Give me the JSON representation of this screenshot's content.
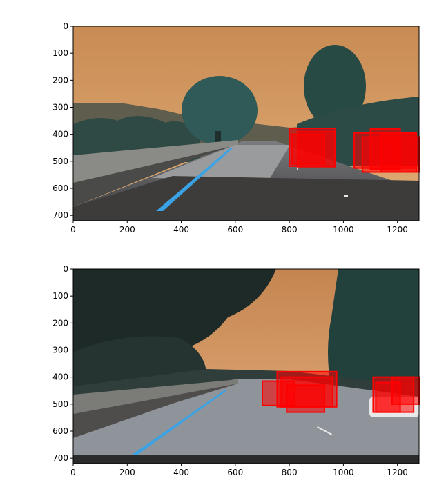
{
  "figure": {
    "panels": [
      {
        "image_description_hidden": "",
        "x_ticks": [
          "0",
          "200",
          "400",
          "600",
          "800",
          "1000",
          "1200"
        ],
        "y_ticks": [
          "0",
          "100",
          "200",
          "300",
          "400",
          "500",
          "600",
          "700"
        ],
        "x_range": [
          0,
          1280
        ],
        "y_range": [
          720,
          0
        ],
        "detections": [
          {
            "x": 800,
            "y": 378,
            "w": 170,
            "h": 140
          },
          {
            "x": 830,
            "y": 390,
            "w": 140,
            "h": 130
          },
          {
            "x": 810,
            "y": 400,
            "w": 120,
            "h": 110
          },
          {
            "x": 1040,
            "y": 395,
            "w": 230,
            "h": 130
          },
          {
            "x": 1070,
            "y": 410,
            "w": 210,
            "h": 130
          },
          {
            "x": 1100,
            "y": 380,
            "w": 110,
            "h": 150
          },
          {
            "x": 1140,
            "y": 400,
            "w": 130,
            "h": 140
          }
        ]
      },
      {
        "x_ticks": [
          "0",
          "200",
          "400",
          "600",
          "800",
          "1000",
          "1200"
        ],
        "y_ticks": [
          "0",
          "100",
          "200",
          "300",
          "400",
          "500",
          "600",
          "700"
        ],
        "x_range": [
          0,
          1280
        ],
        "y_range": [
          720,
          0
        ],
        "detections": [
          {
            "x": 700,
            "y": 415,
            "w": 120,
            "h": 90
          },
          {
            "x": 755,
            "y": 380,
            "w": 220,
            "h": 130
          },
          {
            "x": 770,
            "y": 400,
            "w": 190,
            "h": 110
          },
          {
            "x": 790,
            "y": 430,
            "w": 140,
            "h": 100
          },
          {
            "x": 1110,
            "y": 400,
            "w": 150,
            "h": 130
          },
          {
            "x": 1180,
            "y": 400,
            "w": 100,
            "h": 100
          },
          {
            "x": 1120,
            "y": 420,
            "w": 90,
            "h": 110
          }
        ]
      }
    ]
  },
  "colors": {
    "sky_top": "#c78a52",
    "sky_bottom": "#d7a06a",
    "box": "#ff0000",
    "lane": "#3aa3e6"
  }
}
